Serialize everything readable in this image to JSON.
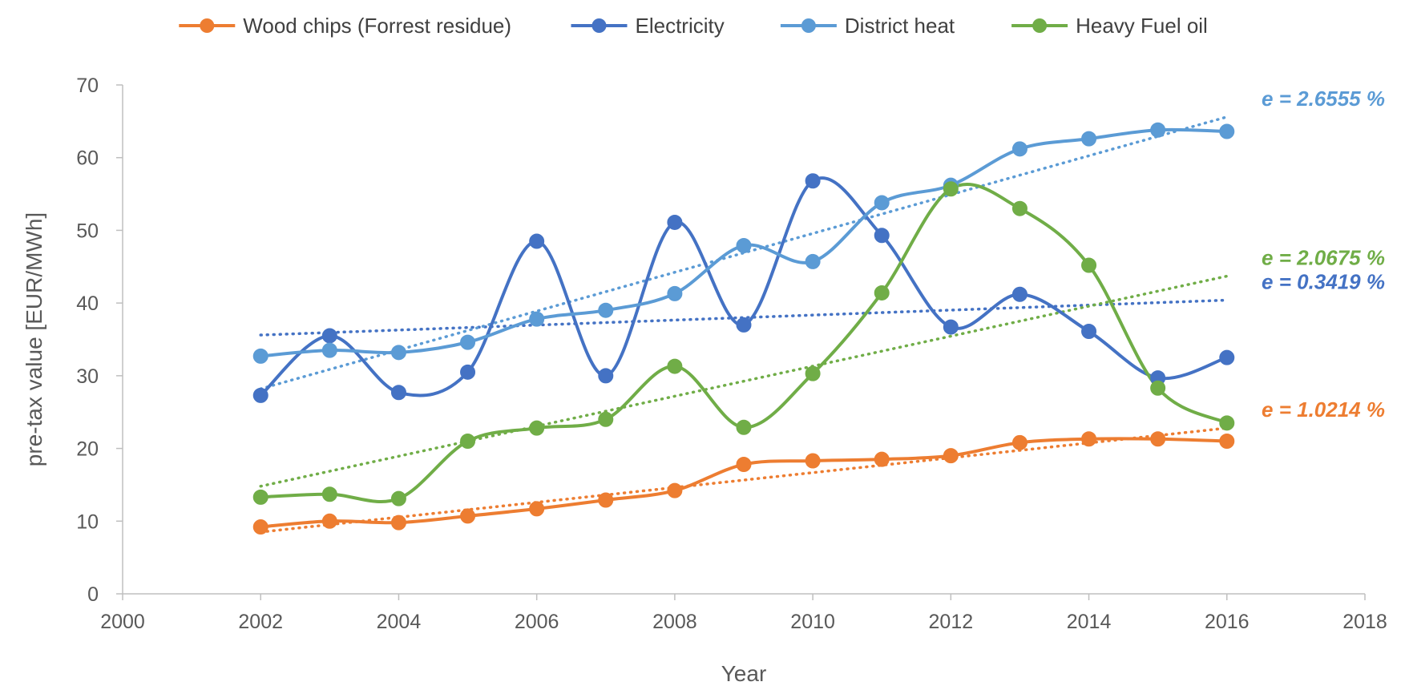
{
  "chart_data": {
    "type": "line",
    "xlabel": "Year",
    "ylabel": "pre-tax value  [EUR/MWh]",
    "xlim": [
      2000,
      2018
    ],
    "ylim": [
      0,
      70
    ],
    "x_ticks": [
      2000,
      2002,
      2004,
      2006,
      2008,
      2010,
      2012,
      2014,
      2016,
      2018
    ],
    "y_ticks": [
      0,
      10,
      20,
      30,
      40,
      50,
      60,
      70
    ],
    "grid": false,
    "legend_position": "top",
    "x": [
      2002,
      2003,
      2004,
      2005,
      2006,
      2007,
      2008,
      2009,
      2010,
      2011,
      2012,
      2013,
      2014,
      2015,
      2016
    ],
    "series": [
      {
        "name": "Wood chips (Forrest residue)",
        "color": "#ED7D31",
        "values": [
          9.2,
          10.0,
          9.8,
          10.7,
          11.7,
          12.9,
          14.2,
          17.8,
          18.3,
          18.5,
          19.0,
          20.8,
          21.3,
          21.3,
          21.0
        ],
        "trend": [
          8.5,
          22.8
        ],
        "annotation": "e = 1.0214 %"
      },
      {
        "name": "Electricity",
        "color": "#4472C4",
        "values": [
          27.3,
          35.5,
          27.7,
          30.5,
          48.5,
          30.0,
          51.1,
          37.0,
          56.8,
          49.3,
          36.7,
          41.2,
          36.1,
          29.7,
          32.5
        ],
        "trend": [
          35.6,
          40.4
        ],
        "annotation": "e = 0.3419 %"
      },
      {
        "name": "District heat",
        "color": "#5B9BD5",
        "values": [
          32.7,
          33.5,
          33.2,
          34.6,
          37.8,
          39.0,
          41.3,
          47.9,
          45.7,
          53.8,
          56.2,
          61.2,
          62.6,
          63.8,
          63.6
        ],
        "trend": [
          28.2,
          65.6
        ],
        "annotation": "e = 2.6555 %"
      },
      {
        "name": "Heavy Fuel oil",
        "color": "#70AD47",
        "values": [
          13.3,
          13.7,
          13.1,
          21.0,
          22.8,
          24.0,
          31.3,
          22.9,
          30.3,
          41.4,
          55.7,
          53.0,
          45.2,
          28.3,
          23.5
        ],
        "trend": [
          14.8,
          43.7
        ],
        "annotation": "e = 2.0675 %"
      }
    ]
  }
}
